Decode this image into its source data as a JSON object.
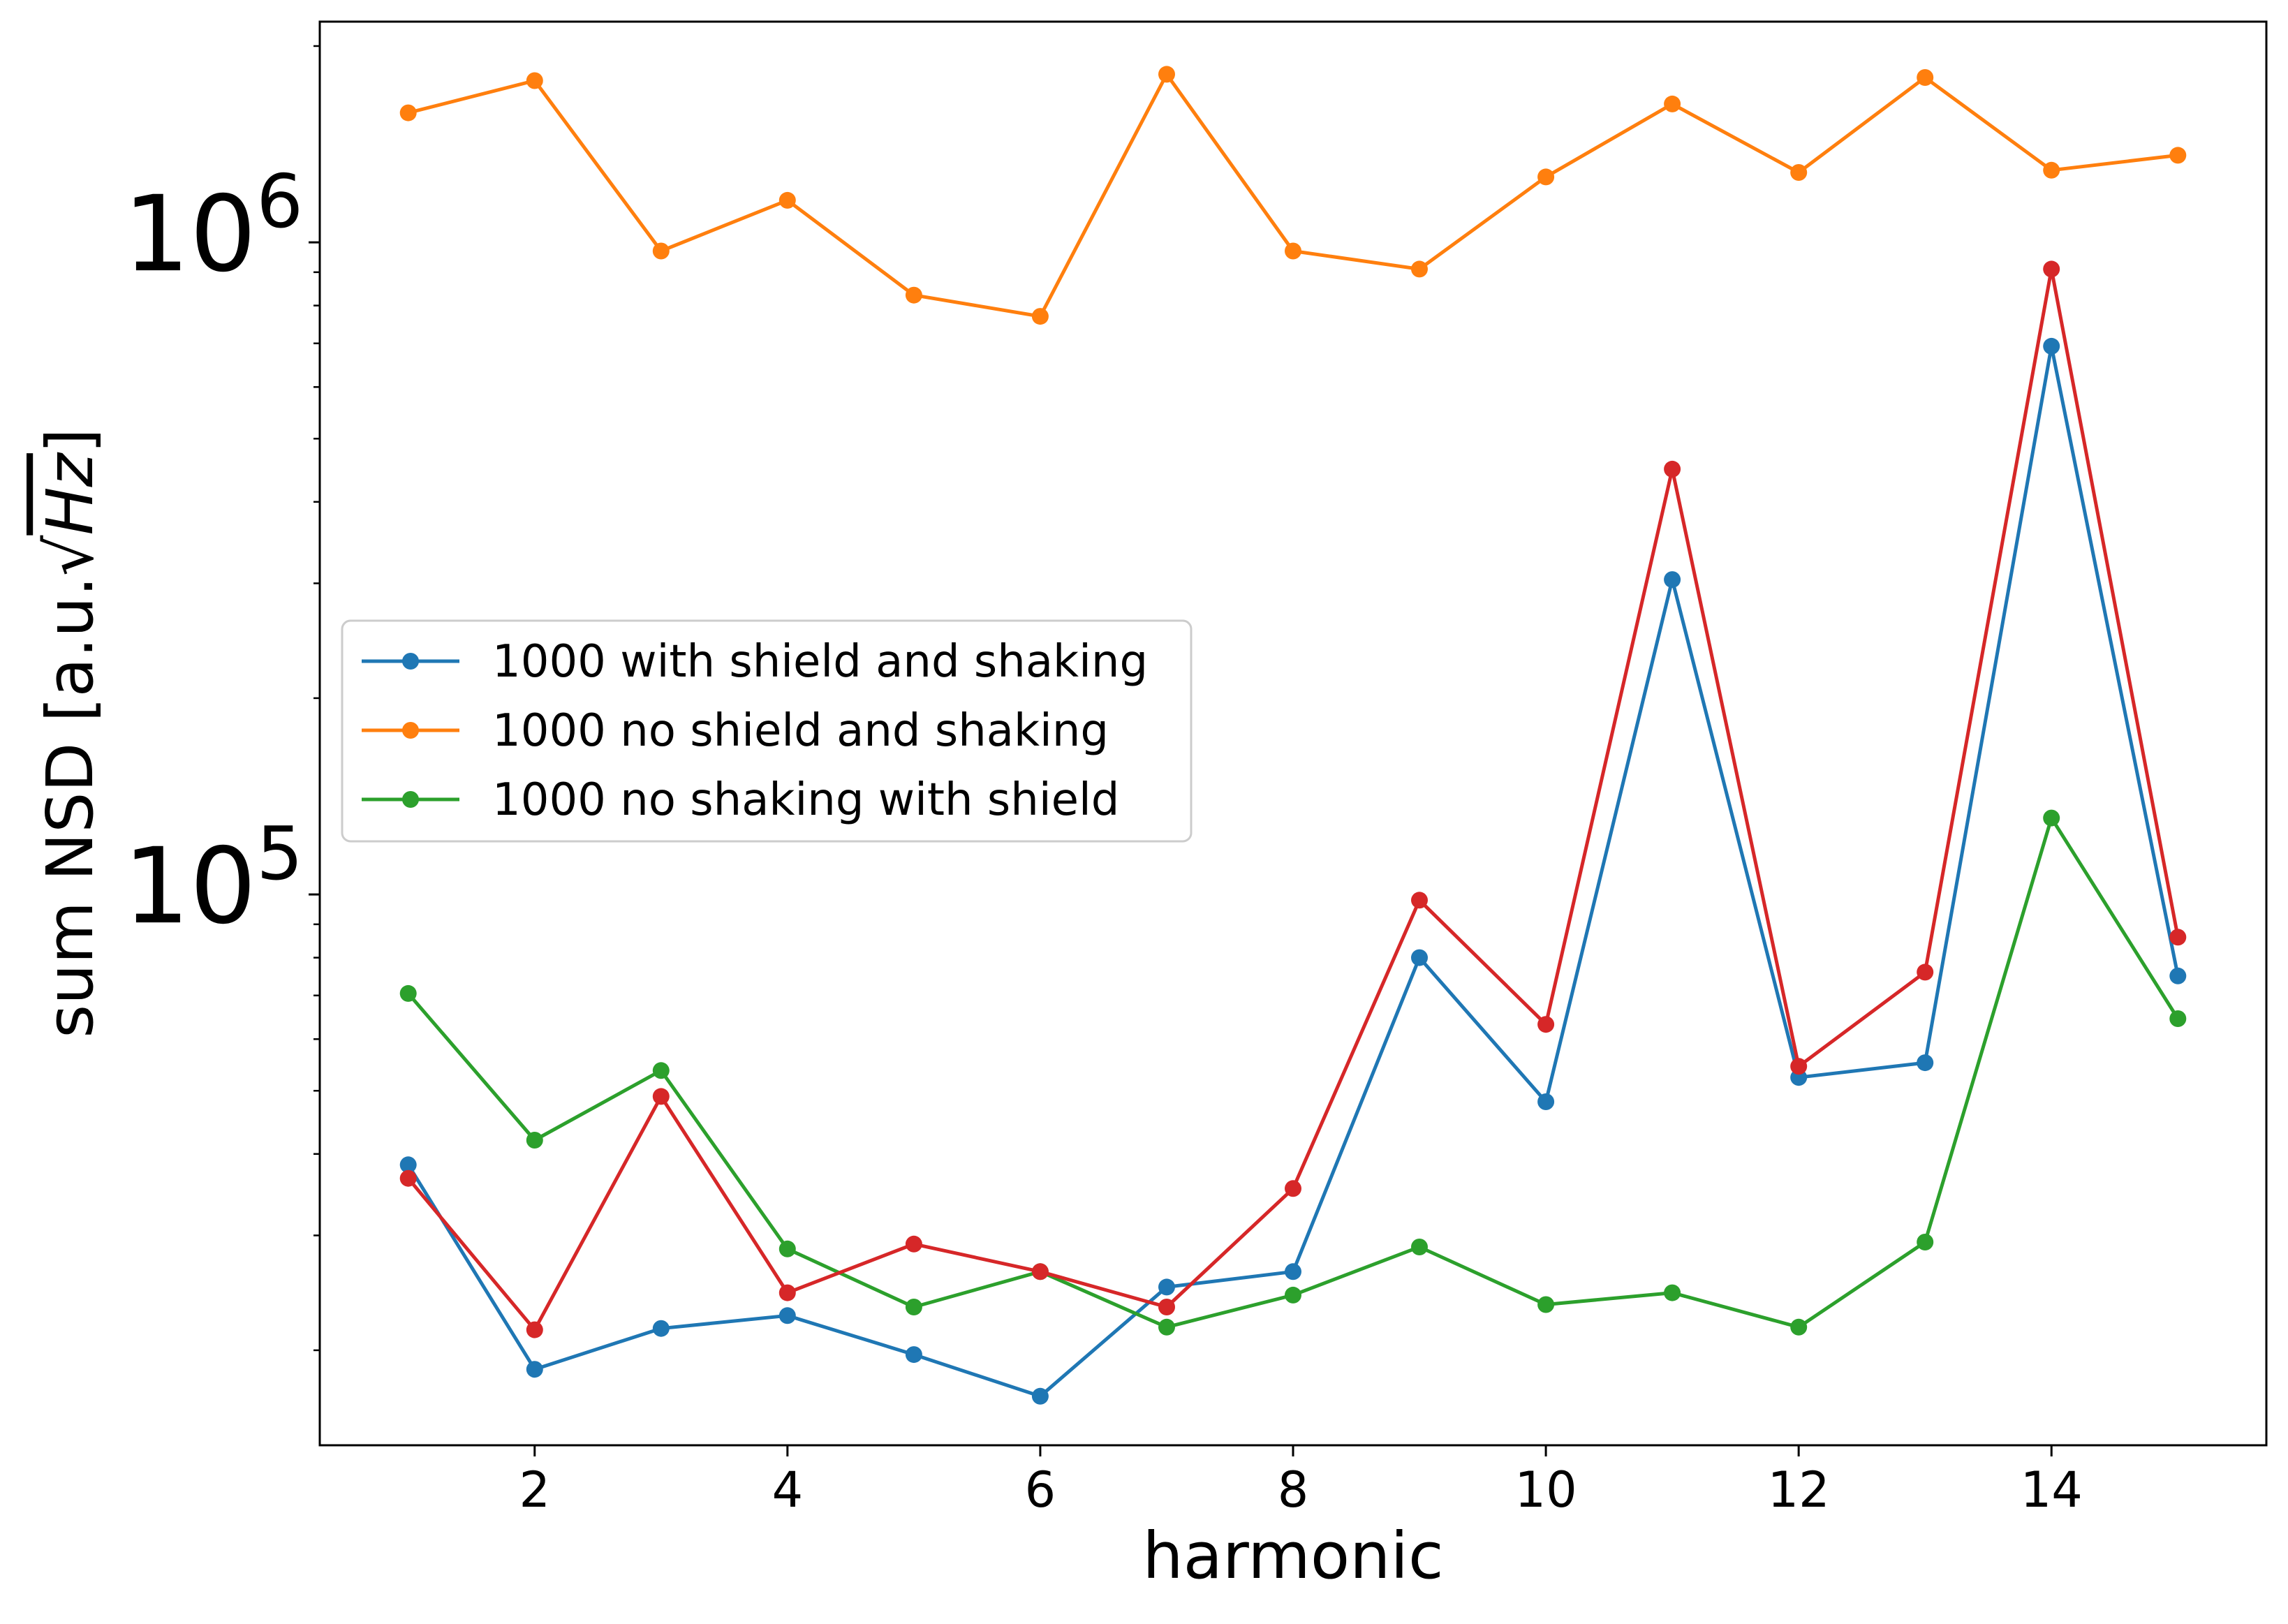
{
  "chart_data": {
    "type": "line",
    "title": "",
    "xlabel": "harmonic",
    "ylabel": "sum NSD [a.u.√Hz]",
    "ylabel_parts": {
      "prefix": "sum NSD [a.u.",
      "radical": "√",
      "hz": "Hz",
      "suffix": "]"
    },
    "xlim": [
      0.3,
      15.7
    ],
    "ylim": [
      14300,
      2180000
    ],
    "yscale": "log",
    "x_ticks": [
      2,
      4,
      6,
      8,
      10,
      12,
      14
    ],
    "x_tick_labels": [
      "2",
      "4",
      "6",
      "8",
      "10",
      "12",
      "14"
    ],
    "y_major_ticks": [
      {
        "value": 100000,
        "base": "10",
        "exponent": "5"
      },
      {
        "value": 1000000,
        "base": "10",
        "exponent": "6"
      }
    ],
    "y_minor_ticks": [
      20000,
      30000,
      40000,
      50000,
      60000,
      70000,
      80000,
      90000,
      200000,
      300000,
      400000,
      500000,
      600000,
      700000,
      800000,
      900000,
      2000000
    ],
    "grid": false,
    "legend_position": "center-left",
    "x": [
      1,
      2,
      3,
      4,
      5,
      6,
      7,
      8,
      9,
      10,
      11,
      12,
      13,
      14,
      15
    ],
    "series": [
      {
        "name": "1000 with shield and shaking",
        "color": "#1f77b4",
        "values": [
          38500,
          18700,
          21600,
          22600,
          19700,
          17000,
          25000,
          26400,
          80000,
          48100,
          304000,
          52400,
          55200,
          693000,
          75000
        ],
        "in_legend": true
      },
      {
        "name": "1000 no shield and shaking",
        "color": "#ff7f0e",
        "values": [
          1580000,
          1770000,
          970000,
          1160000,
          830000,
          770000,
          1810000,
          970000,
          910000,
          1260000,
          1630000,
          1280000,
          1790000,
          1290000,
          1360000
        ],
        "in_legend": true
      },
      {
        "name": "1000 no shaking with shield",
        "color": "#2ca02c",
        "values": [
          70500,
          42000,
          53700,
          28600,
          23300,
          26400,
          21700,
          24300,
          28800,
          23500,
          24500,
          21700,
          29300,
          131000,
          64500
        ],
        "in_legend": true
      },
      {
        "name": "",
        "color": "#d62728",
        "values": [
          36700,
          21500,
          49000,
          24500,
          29100,
          26400,
          23300,
          35400,
          98000,
          63200,
          449000,
          54500,
          76000,
          910000,
          86000
        ],
        "in_legend": false
      }
    ]
  }
}
